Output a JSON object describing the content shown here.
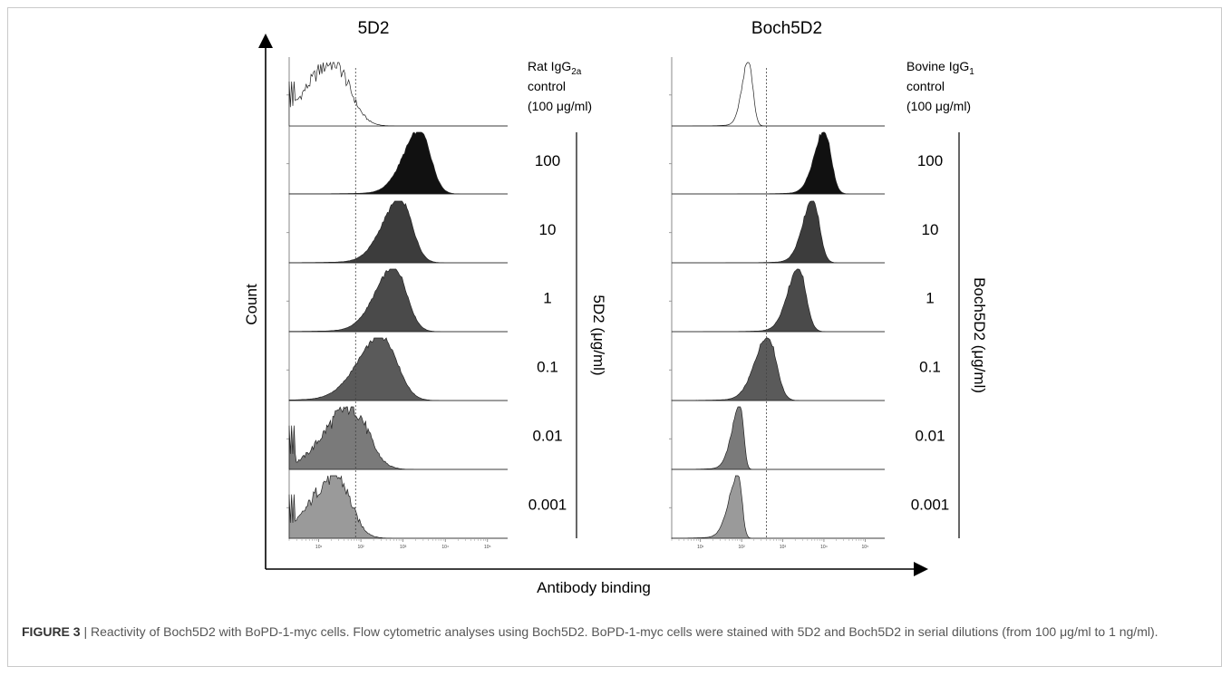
{
  "chart_data": {
    "type": "area",
    "kind": "flow-cytometry-histogram-stack",
    "xlabel": "Antibody binding",
    "ylabel": "Count",
    "x_scale": "log",
    "x_range": [
      2,
      300000
    ],
    "x_ticks": [
      "10¹",
      "10²",
      "10³",
      "10⁴",
      "10⁵"
    ],
    "x_tick_values": [
      10,
      100,
      1000,
      10000,
      100000
    ],
    "panels": [
      {
        "title": "5D2",
        "gate_line_x": 75,
        "dilution_axis_label": "5D2 (μg/ml)",
        "control_label": {
          "line1_pre": "Rat IgG",
          "line1_sub": "2a",
          "line2": "control",
          "line3": "(100 μg/ml)"
        },
        "rows": [
          {
            "label": "",
            "type": "control",
            "fill": "#ffffff",
            "peak_x": 22,
            "width_log": 0.55,
            "noise": true
          },
          {
            "label": "100",
            "fill": "#111111",
            "peak_x": 2600,
            "width_log": 0.35,
            "skew": 1.0
          },
          {
            "label": "10",
            "fill": "#3c3c3c",
            "peak_x": 900,
            "width_log": 0.38,
            "skew": 1.0
          },
          {
            "label": "1",
            "fill": "#4a4a4a",
            "peak_x": 650,
            "width_log": 0.4,
            "skew": 1.0
          },
          {
            "label": "0.1",
            "fill": "#5a5a5a",
            "peak_x": 330,
            "width_log": 0.5,
            "skew": 1.0
          },
          {
            "label": "0.01",
            "fill": "#7a7a7a",
            "peak_x": 60,
            "width_log": 0.55,
            "skew": 1.0,
            "noise": true
          },
          {
            "label": "0.001",
            "fill": "#9a9a9a",
            "peak_x": 25,
            "width_log": 0.5,
            "skew": 1.0,
            "noise": true
          }
        ]
      },
      {
        "title": "Boch5D2",
        "gate_line_x": 400,
        "dilution_axis_label": "Boch5D2 (μg/ml)",
        "control_label": {
          "line1_pre": "Bovine IgG",
          "line1_sub": "1",
          "line2": "control",
          "line3": "(100 μg/ml)"
        },
        "rows": [
          {
            "label": "",
            "type": "control",
            "fill": "#ffffff",
            "peak_x": 150,
            "width_log": 0.14
          },
          {
            "label": "100",
            "fill": "#111111",
            "peak_x": 10500,
            "width_log": 0.22,
            "skew": 1.0
          },
          {
            "label": "10",
            "fill": "#3c3c3c",
            "peak_x": 5500,
            "width_log": 0.22,
            "skew": 1.0
          },
          {
            "label": "1",
            "fill": "#4a4a4a",
            "peak_x": 2500,
            "width_log": 0.24,
            "skew": 1.0
          },
          {
            "label": "0.1",
            "fill": "#5a5a5a",
            "peak_x": 450,
            "width_log": 0.28,
            "skew": 1.0
          },
          {
            "label": "0.01",
            "fill": "#7a7a7a",
            "peak_x": 95,
            "width_log": 0.18,
            "skew": 0.6
          },
          {
            "label": "0.001",
            "fill": "#9a9a9a",
            "peak_x": 85,
            "width_log": 0.2,
            "skew": 0.6
          }
        ]
      }
    ]
  },
  "caption": {
    "label": "FIGURE 3",
    "text": " | Reactivity of Boch5D2 with BoPD-1-myc cells. Flow cytometric analyses using Boch5D2. BoPD-1-myc cells were stained with 5D2 and Boch5D2 in serial dilutions (from 100 μg/ml to 1 ng/ml)."
  }
}
